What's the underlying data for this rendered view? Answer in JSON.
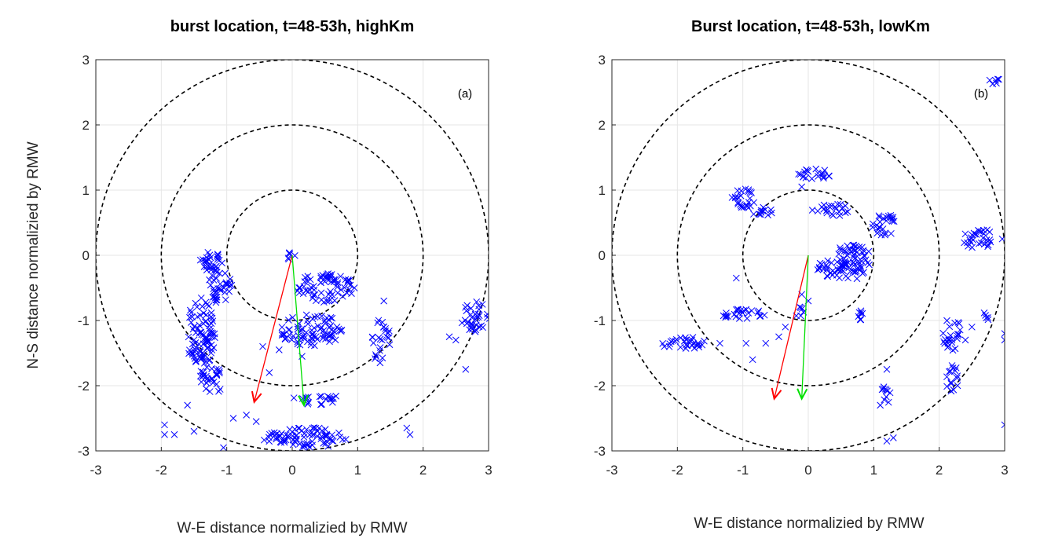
{
  "chart_data": [
    {
      "type": "scatter",
      "title": "burst location, t=48-53h, highKm",
      "xlabel": "W-E distance normalizied by RMW",
      "ylabel": "N-S distance normalizied by RMW",
      "panel_tag": "(a)",
      "xlim": [
        -3,
        3
      ],
      "ylim": [
        -3,
        3
      ],
      "xticks": [
        "-3",
        "-2",
        "-1",
        "0",
        "1",
        "2",
        "3"
      ],
      "yticks": [
        "3",
        "2",
        "1",
        "0",
        "-1",
        "-2",
        "-3"
      ],
      "grid": true,
      "range_rings": [
        1,
        2,
        3
      ],
      "marker": "x",
      "marker_color": "#0000ff",
      "clusters": [
        {
          "cx": -1.25,
          "cy": -0.1,
          "rx": 0.18,
          "ry": 0.15,
          "n": 30
        },
        {
          "cx": -1.1,
          "cy": -0.5,
          "rx": 0.2,
          "ry": 0.25,
          "n": 35
        },
        {
          "cx": -1.4,
          "cy": -1.2,
          "rx": 0.22,
          "ry": 0.55,
          "n": 90
        },
        {
          "cx": -1.25,
          "cy": -1.9,
          "rx": 0.18,
          "ry": 0.3,
          "n": 30
        },
        {
          "cx": 0.5,
          "cy": -0.5,
          "rx": 0.45,
          "ry": 0.22,
          "n": 70
        },
        {
          "cx": 0.3,
          "cy": -1.15,
          "rx": 0.5,
          "ry": 0.25,
          "n": 80
        },
        {
          "cx": 1.35,
          "cy": -1.3,
          "rx": 0.15,
          "ry": 0.35,
          "n": 25
        },
        {
          "cx": 0.35,
          "cy": -2.2,
          "rx": 0.35,
          "ry": 0.1,
          "n": 20
        },
        {
          "cx": 0.2,
          "cy": -2.8,
          "rx": 0.65,
          "ry": 0.16,
          "n": 80
        },
        {
          "cx": 2.8,
          "cy": -0.95,
          "rx": 0.22,
          "ry": 0.25,
          "n": 35
        },
        {
          "cx": -0.05,
          "cy": 0.0,
          "rx": 0.1,
          "ry": 0.06,
          "n": 6
        }
      ],
      "sparse_points": [
        [
          -1.95,
          -2.6
        ],
        [
          -1.8,
          -2.75
        ],
        [
          -1.95,
          -2.75
        ],
        [
          -1.5,
          -2.7
        ],
        [
          -1.05,
          -2.95
        ],
        [
          -0.9,
          -2.5
        ],
        [
          -0.7,
          -2.45
        ],
        [
          -0.55,
          -2.55
        ],
        [
          1.8,
          -2.75
        ],
        [
          1.75,
          -2.65
        ],
        [
          2.4,
          -1.25
        ],
        [
          2.5,
          -1.3
        ],
        [
          2.65,
          -1.75
        ],
        [
          -0.45,
          -1.4
        ],
        [
          -0.35,
          -1.8
        ],
        [
          -1.6,
          -2.3
        ],
        [
          1.4,
          -0.7
        ],
        [
          0.15,
          -1.55
        ],
        [
          -0.2,
          -1.45
        ]
      ],
      "arrows": [
        {
          "color": "#ff0000",
          "from": [
            0,
            0
          ],
          "to": [
            -0.58,
            -2.25
          ]
        },
        {
          "color": "#00e000",
          "from": [
            0,
            0
          ],
          "to": [
            0.18,
            -2.3
          ]
        }
      ]
    },
    {
      "type": "scatter",
      "title": "Burst location, t=48-53h, lowKm",
      "xlabel": "W-E distance normalizied by RMW",
      "ylabel": "",
      "panel_tag": "(b)",
      "xlim": [
        -3,
        3
      ],
      "ylim": [
        -3,
        3
      ],
      "xticks": [
        "-3",
        "-2",
        "-1",
        "0",
        "1",
        "2",
        "3"
      ],
      "yticks": [
        "3",
        "2",
        "1",
        "0",
        "-1",
        "-2",
        "-3"
      ],
      "grid": true,
      "range_rings": [
        1,
        2,
        3
      ],
      "marker": "x",
      "marker_color": "#0000ff",
      "clusters": [
        {
          "cx": -1.0,
          "cy": 0.85,
          "rx": 0.18,
          "ry": 0.2,
          "n": 25
        },
        {
          "cx": -0.7,
          "cy": 0.65,
          "rx": 0.15,
          "ry": 0.1,
          "n": 12
        },
        {
          "cx": 0.1,
          "cy": 1.25,
          "rx": 0.25,
          "ry": 0.08,
          "n": 20
        },
        {
          "cx": 0.35,
          "cy": 0.7,
          "rx": 0.3,
          "ry": 0.1,
          "n": 22
        },
        {
          "cx": 1.15,
          "cy": 0.45,
          "rx": 0.2,
          "ry": 0.2,
          "n": 25
        },
        {
          "cx": 0.7,
          "cy": -0.05,
          "rx": 0.25,
          "ry": 0.35,
          "n": 50
        },
        {
          "cx": 0.45,
          "cy": -0.2,
          "rx": 0.32,
          "ry": 0.15,
          "n": 40
        },
        {
          "cx": 2.65,
          "cy": 0.25,
          "rx": 0.35,
          "ry": 0.15,
          "n": 30
        },
        {
          "cx": 2.85,
          "cy": 2.7,
          "rx": 0.08,
          "ry": 0.08,
          "n": 6
        },
        {
          "cx": -1.0,
          "cy": -0.9,
          "rx": 0.35,
          "ry": 0.08,
          "n": 25
        },
        {
          "cx": -0.15,
          "cy": -0.85,
          "rx": 0.08,
          "ry": 0.1,
          "n": 6
        },
        {
          "cx": 0.85,
          "cy": -0.9,
          "rx": 0.1,
          "ry": 0.12,
          "n": 8
        },
        {
          "cx": -1.9,
          "cy": -1.35,
          "rx": 0.35,
          "ry": 0.1,
          "n": 30
        },
        {
          "cx": 2.2,
          "cy": -1.2,
          "rx": 0.15,
          "ry": 0.3,
          "n": 25
        },
        {
          "cx": 2.2,
          "cy": -1.9,
          "rx": 0.1,
          "ry": 0.25,
          "n": 15
        },
        {
          "cx": 1.2,
          "cy": -2.1,
          "rx": 0.08,
          "ry": 0.25,
          "n": 10
        },
        {
          "cx": 2.7,
          "cy": -0.95,
          "rx": 0.07,
          "ry": 0.07,
          "n": 5
        }
      ],
      "sparse_points": [
        [
          -0.95,
          -1.35
        ],
        [
          -0.85,
          -1.6
        ],
        [
          -0.65,
          -1.35
        ],
        [
          -0.45,
          -1.25
        ],
        [
          -0.35,
          -1.1
        ],
        [
          -1.35,
          -1.35
        ],
        [
          2.4,
          -1.3
        ],
        [
          2.5,
          -1.1
        ],
        [
          1.2,
          -1.75
        ],
        [
          1.1,
          -2.3
        ],
        [
          1.2,
          -2.85
        ],
        [
          1.3,
          -2.8
        ],
        [
          3.0,
          -2.6
        ],
        [
          3.0,
          -1.2
        ],
        [
          3.0,
          -1.3
        ],
        [
          -0.1,
          -0.6
        ],
        [
          0.0,
          -0.7
        ],
        [
          -1.1,
          -0.35
        ],
        [
          -0.1,
          1.05
        ]
      ],
      "arrows": [
        {
          "color": "#ff0000",
          "from": [
            0,
            0
          ],
          "to": [
            -0.52,
            -2.2
          ]
        },
        {
          "color": "#00e000",
          "from": [
            0,
            0
          ],
          "to": [
            -0.1,
            -2.2
          ]
        }
      ]
    }
  ]
}
